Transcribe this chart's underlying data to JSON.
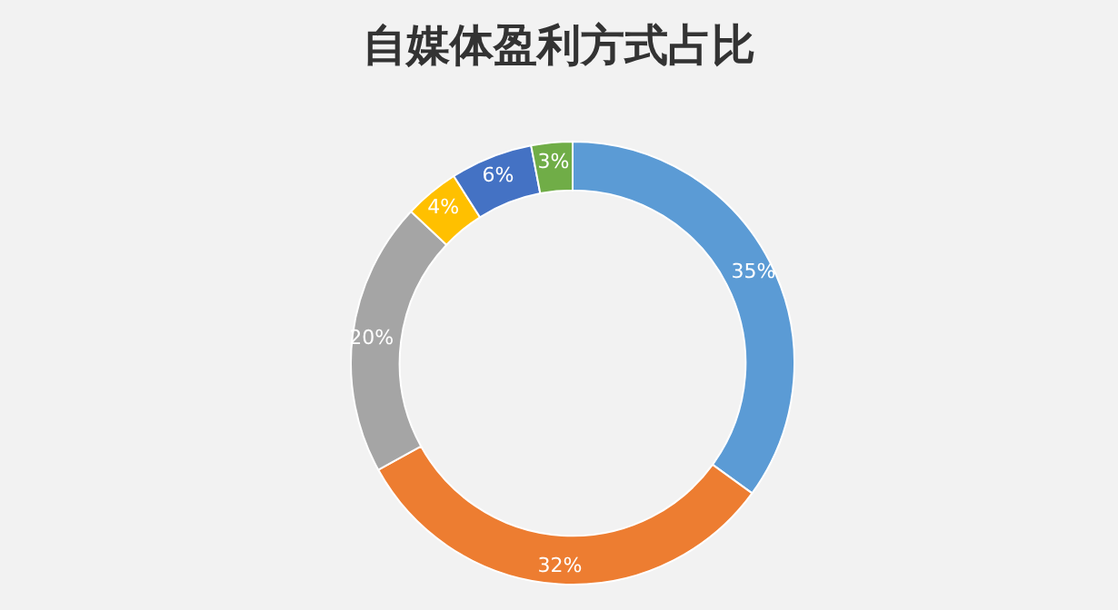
{
  "chart_data": {
    "type": "donut",
    "title": "自媒体盈利方式占比",
    "categories": [
      null,
      null,
      null,
      null,
      null,
      null
    ],
    "values": [
      35,
      32,
      20,
      4,
      6,
      3
    ],
    "colors": [
      "#5b9bd5",
      "#ed7d31",
      "#a5a5a5",
      "#ffc000",
      "#4472c4",
      "#70ad47"
    ],
    "value_labels": [
      "35%",
      "32%",
      "20%",
      "4%",
      "6%",
      "3%"
    ]
  }
}
